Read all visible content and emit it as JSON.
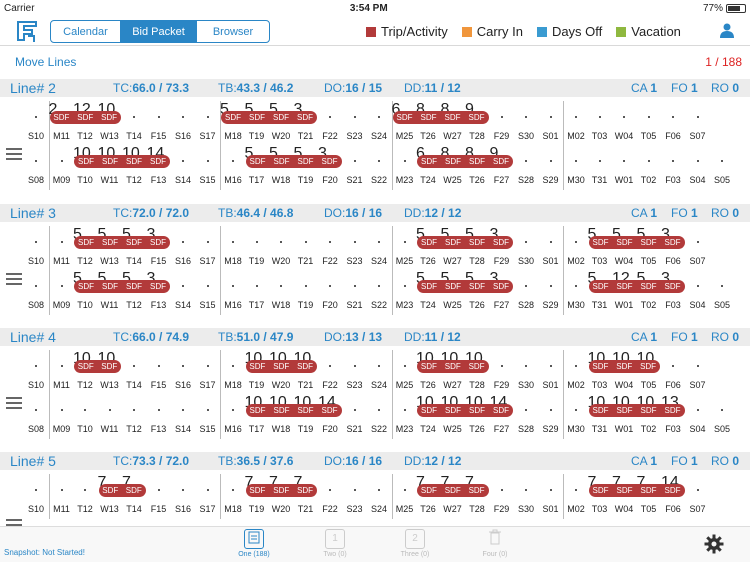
{
  "status": {
    "carrier": "Carrier",
    "time": "3:54 PM",
    "battery": "77%"
  },
  "segments": [
    {
      "label": "Calendar",
      "active": false,
      "w": 70
    },
    {
      "label": "Bid Packet",
      "active": true,
      "w": 76
    },
    {
      "label": "Browser",
      "active": false,
      "w": 72
    }
  ],
  "legend": [
    {
      "label": "Trip/Activity",
      "color": "#b23a3a"
    },
    {
      "label": "Carry In",
      "color": "#f0963c"
    },
    {
      "label": "Days Off",
      "color": "#3a9bd1"
    },
    {
      "label": "Vacation",
      "color": "#8fb83f"
    }
  ],
  "move": {
    "title": "Move Lines",
    "count": "1 / 188"
  },
  "lines": [
    {
      "name": "Line# 2",
      "tc": "TC:",
      "tcv": "66.0 / 73.3",
      "tb": "TB:",
      "tbv": "43.3 / 46.2",
      "do": "DO:",
      "dov": "16 / 15",
      "dd": "DD:",
      "ddv": "11 / 12",
      "ca": "CA",
      "cav": "1",
      "fo": "FO",
      "fov": "1",
      "ro": "RO",
      "rov": "0",
      "rows": [
        {
          "days": [
            "S10",
            "M11",
            "T12",
            "W13",
            "T14",
            "F15",
            "S16",
            "S17",
            "M18",
            "T19",
            "W20",
            "T21",
            "F22",
            "S23",
            "S24",
            "M25",
            "T26",
            "W27",
            "T28",
            "F29",
            "S30",
            "S01",
            "M02",
            "T03",
            "W04",
            "T05",
            "F06",
            "S07"
          ],
          "trips": [
            {
              "s": 1,
              "e": 3,
              "n": [
                "2",
                "12",
                "10"
              ]
            },
            {
              "s": 8,
              "e": 11,
              "n": [
                "5",
                "5",
                "5",
                "3"
              ]
            },
            {
              "s": 15,
              "e": 18,
              "n": [
                "6",
                "8",
                "8",
                "9"
              ]
            }
          ]
        },
        {
          "days": [
            "S08",
            "M09",
            "T10",
            "W11",
            "T12",
            "F13",
            "S14",
            "S15",
            "M16",
            "T17",
            "W18",
            "T19",
            "F20",
            "S21",
            "S22",
            "M23",
            "T24",
            "W25",
            "T26",
            "F27",
            "S28",
            "S29",
            "M30",
            "T31",
            "W01",
            "T02",
            "F03",
            "S04",
            "S05"
          ],
          "trips": [
            {
              "s": 2,
              "e": 5,
              "n": [
                "10",
                "10",
                "10",
                "14"
              ]
            },
            {
              "s": 9,
              "e": 12,
              "n": [
                "5",
                "5",
                "5",
                "3"
              ]
            },
            {
              "s": 16,
              "e": 19,
              "n": [
                "6",
                "8",
                "8",
                "9"
              ]
            }
          ]
        }
      ]
    },
    {
      "name": "Line# 3",
      "tc": "TC:",
      "tcv": "72.0 / 72.0",
      "tb": "TB:",
      "tbv": "46.4 / 46.8",
      "do": "DO:",
      "dov": "16 / 16",
      "dd": "DD:",
      "ddv": "12 / 12",
      "ca": "CA",
      "cav": "1",
      "fo": "FO",
      "fov": "1",
      "ro": "RO",
      "rov": "0",
      "rows": [
        {
          "days": [
            "S10",
            "M11",
            "T12",
            "W13",
            "T14",
            "F15",
            "S16",
            "S17",
            "M18",
            "T19",
            "W20",
            "T21",
            "F22",
            "S23",
            "S24",
            "M25",
            "T26",
            "W27",
            "T28",
            "F29",
            "S30",
            "S01",
            "M02",
            "T03",
            "W04",
            "T05",
            "F06",
            "S07"
          ],
          "trips": [
            {
              "s": 2,
              "e": 5,
              "n": [
                "5",
                "5",
                "5",
                "3"
              ]
            },
            {
              "s": 16,
              "e": 19,
              "n": [
                "5",
                "5",
                "5",
                "3"
              ]
            },
            {
              "s": 23,
              "e": 26,
              "n": [
                "5",
                "5",
                "5",
                "3"
              ]
            }
          ]
        },
        {
          "days": [
            "S08",
            "M09",
            "T10",
            "W11",
            "T12",
            "F13",
            "S14",
            "S15",
            "M16",
            "T17",
            "W18",
            "T19",
            "F20",
            "S21",
            "S22",
            "M23",
            "T24",
            "W25",
            "T26",
            "F27",
            "S28",
            "S29",
            "M30",
            "T31",
            "W01",
            "T02",
            "F03",
            "S04",
            "S05"
          ],
          "trips": [
            {
              "s": 2,
              "e": 5,
              "n": [
                "5",
                "5",
                "5",
                "3"
              ]
            },
            {
              "s": 16,
              "e": 19,
              "n": [
                "5",
                "5",
                "5",
                "3"
              ]
            },
            {
              "s": 23,
              "e": 26,
              "n": [
                "5",
                "12",
                "5",
                "3"
              ]
            }
          ]
        }
      ]
    },
    {
      "name": "Line# 4",
      "tc": "TC:",
      "tcv": "66.0 / 74.9",
      "tb": "TB:",
      "tbv": "51.0 / 47.9",
      "do": "DO:",
      "dov": "13 / 13",
      "dd": "DD:",
      "ddv": "11 / 12",
      "ca": "CA",
      "cav": "1",
      "fo": "FO",
      "fov": "1",
      "ro": "RO",
      "rov": "0",
      "rows": [
        {
          "days": [
            "S10",
            "M11",
            "T12",
            "W13",
            "T14",
            "F15",
            "S16",
            "S17",
            "M18",
            "T19",
            "W20",
            "T21",
            "F22",
            "S23",
            "S24",
            "M25",
            "T26",
            "W27",
            "T28",
            "F29",
            "S30",
            "S01",
            "M02",
            "T03",
            "W04",
            "T05",
            "F06",
            "S07"
          ],
          "trips": [
            {
              "s": 2,
              "e": 3,
              "n": [
                "10",
                "10"
              ]
            },
            {
              "s": 9,
              "e": 11,
              "n": [
                "10",
                "10",
                "10"
              ]
            },
            {
              "s": 16,
              "e": 18,
              "n": [
                "10",
                "10",
                "10"
              ]
            },
            {
              "s": 23,
              "e": 25,
              "n": [
                "10",
                "10",
                "10"
              ]
            }
          ]
        },
        {
          "days": [
            "S08",
            "M09",
            "T10",
            "W11",
            "T12",
            "F13",
            "S14",
            "S15",
            "M16",
            "T17",
            "W18",
            "T19",
            "F20",
            "S21",
            "S22",
            "M23",
            "T24",
            "W25",
            "T26",
            "F27",
            "S28",
            "S29",
            "M30",
            "T31",
            "W01",
            "T02",
            "F03",
            "S04",
            "S05"
          ],
          "trips": [
            {
              "s": 9,
              "e": 12,
              "n": [
                "10",
                "10",
                "10",
                "14"
              ]
            },
            {
              "s": 16,
              "e": 19,
              "n": [
                "10",
                "10",
                "10",
                "14"
              ]
            },
            {
              "s": 23,
              "e": 26,
              "n": [
                "10",
                "10",
                "10",
                "13"
              ]
            }
          ]
        }
      ]
    },
    {
      "name": "Line# 5",
      "tc": "TC:",
      "tcv": "73.3 / 72.0",
      "tb": "TB:",
      "tbv": "36.5 / 37.6",
      "do": "DO:",
      "dov": "16 / 16",
      "dd": "DD:",
      "ddv": "12 / 12",
      "ca": "CA",
      "cav": "1",
      "fo": "FO",
      "fov": "1",
      "ro": "RO",
      "rov": "0",
      "rows": [
        {
          "days": [
            "S10",
            "M11",
            "T12",
            "W13",
            "T14",
            "F15",
            "S16",
            "S17",
            "M18",
            "T19",
            "W20",
            "T21",
            "F22",
            "S23",
            "S24",
            "M25",
            "T26",
            "W27",
            "T28",
            "F29",
            "S30",
            "S01",
            "M02",
            "T03",
            "W04",
            "T05",
            "F06",
            "S07"
          ],
          "trips": [
            {
              "s": 3,
              "e": 4,
              "n": [
                "7",
                "7"
              ]
            },
            {
              "s": 9,
              "e": 11,
              "n": [
                "7",
                "7",
                "7"
              ]
            },
            {
              "s": 16,
              "e": 18,
              "n": [
                "7",
                "7",
                "7"
              ]
            },
            {
              "s": 23,
              "e": 26,
              "n": [
                "7",
                "7",
                "7",
                "14"
              ]
            }
          ]
        }
      ]
    }
  ],
  "pill_label": "SDF",
  "tabs": [
    {
      "label": "One (188)",
      "glyph": "",
      "on": true
    },
    {
      "label": "Two (0)",
      "glyph": "1",
      "on": false
    },
    {
      "label": "Three (0)",
      "glyph": "2",
      "on": false
    },
    {
      "label": "Four (0)",
      "glyph": "",
      "on": false
    }
  ],
  "snapshot": "Snapshot: Not Started!",
  "icons": {
    "logo": "app-logo-icon",
    "user": "user-icon",
    "settings": "gear-icon",
    "reorder": "reorder-icon"
  }
}
